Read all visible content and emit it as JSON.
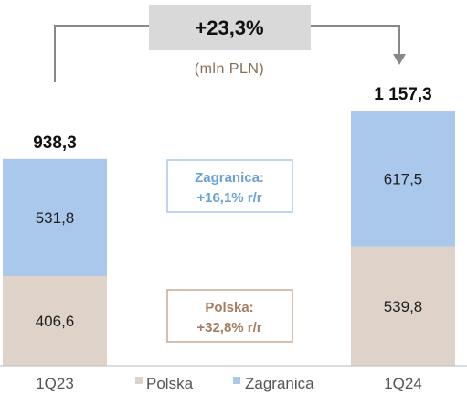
{
  "chart_data": {
    "type": "bar",
    "stacked": true,
    "categories": [
      "1Q23",
      "1Q24"
    ],
    "series": [
      {
        "name": "Polska",
        "values": [
          406.6,
          539.8
        ],
        "labels": [
          "406,6",
          "539,8"
        ],
        "color": "#dfd2c8"
      },
      {
        "name": "Zagranica",
        "values": [
          531.8,
          617.5
        ],
        "labels": [
          "531,8",
          "617,5"
        ],
        "color": "#a9c8ec"
      }
    ],
    "totals": [
      938.3,
      1157.3
    ],
    "total_labels": [
      "938,3",
      "1 157,3"
    ],
    "ylim": [
      0,
      1157.3
    ],
    "legend_position": "bottom"
  },
  "growth": {
    "label": "+23,3%",
    "unit": "(mln PLN)"
  },
  "callouts": {
    "zagranica": {
      "line1": "Zagranica:",
      "line2": "+16,1% r/r",
      "color": "#6aa2d6"
    },
    "polska": {
      "line1": "Polska:",
      "line2": "+32,8% r/r",
      "color": "#a57d62"
    }
  },
  "colors": {
    "axis": "#bbbbbb",
    "arrow": "#888888",
    "growth_box": "#d9d9d9"
  }
}
